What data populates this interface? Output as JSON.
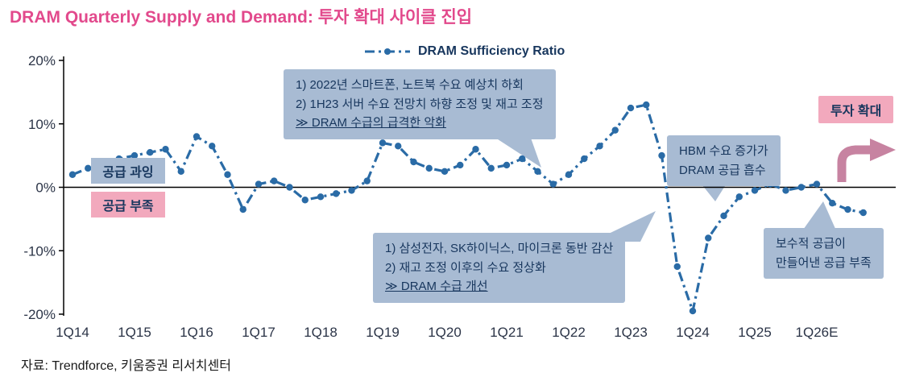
{
  "title": "DRAM Quarterly Supply and Demand:  투자 확대 사이클 진입",
  "legend": {
    "label": "DRAM Sufficiency Ratio"
  },
  "labels": {
    "supply_surplus": "공급 과잉",
    "supply_shortage": "공급 부족",
    "investment_expansion": "투자 확대"
  },
  "callouts": {
    "demand_decline": {
      "line1": "1) 2022년 스마트폰, 노트북 수요 예상치 하회",
      "line2": "2) 1H23 서버 수요 전망치 하향 조정 및 재고 조정",
      "line3": "≫ DRAM 수급의 급격한 악화"
    },
    "hbm": {
      "line1": "HBM 수요 증가가",
      "line2": "DRAM 공급 흡수"
    },
    "production_cut": {
      "line1": "1) 삼성전자, SK하이닉스, 마이크론 동반 감산",
      "line2": "2) 재고 조정 이후의 수요 정상화",
      "line3": "≫ DRAM 수급 개선"
    },
    "conservative_supply": {
      "line1": "보수적 공급이",
      "line2": "만들어낸 공급 부족"
    }
  },
  "source": "자료: Trendforce, 키움증권 리서치센터",
  "colors": {
    "title_pink": "#e2498c",
    "line": "#2a6ba6",
    "callout_blue": "#a8bbd3",
    "callout_pink": "#f2a9bd",
    "arrow_pink": "#c783a1",
    "text_navy": "#17365d",
    "axis": "#000000",
    "axis_text": "#2b3447"
  },
  "chart_data": {
    "type": "line",
    "title": "DRAM Quarterly Supply and Demand",
    "series_name": "DRAM Sufficiency Ratio",
    "x_start": "1Q14",
    "x_frequency": "quarterly",
    "x_tick_labels": [
      "1Q14",
      "1Q15",
      "1Q16",
      "1Q17",
      "1Q18",
      "1Q19",
      "1Q20",
      "1Q21",
      "1Q22",
      "1Q23",
      "1Q24",
      "1Q25",
      "1Q26E"
    ],
    "y_tick_values": [
      20,
      10,
      0,
      -10,
      -20
    ],
    "y_tick_labels": [
      "20%",
      "10%",
      "0%",
      "-10%",
      "-20%"
    ],
    "ylim": [
      -20,
      20
    ],
    "line_style": "dash-dot",
    "values": [
      2,
      3,
      2.5,
      4.5,
      5,
      5.5,
      6,
      2.5,
      8,
      6.5,
      2,
      -3.5,
      0.5,
      1,
      0,
      -2,
      -1.5,
      -1,
      -0.5,
      1,
      7,
      6.5,
      4,
      3,
      2.5,
      3.5,
      6,
      3,
      3.5,
      4.5,
      2.5,
      0.5,
      2,
      4.5,
      6.5,
      9,
      12.5,
      13,
      5,
      -12.5,
      -19.5,
      -8,
      -4.5,
      -1.5,
      -0.5,
      0.5,
      -0.5,
      0,
      0.5,
      -2.5,
      -3.5,
      -4
    ]
  }
}
